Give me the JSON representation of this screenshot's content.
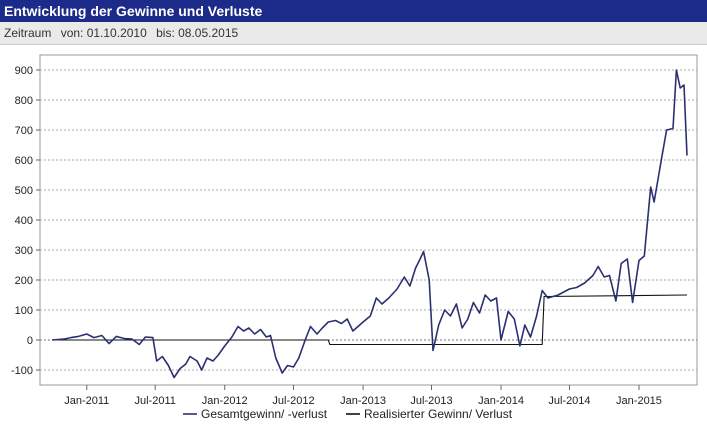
{
  "header": {
    "title": "Entwicklung der Gewinne und Verluste",
    "period_label": "Zeitraum",
    "from_label": "von: 01.10.2010",
    "to_label": "bis: 08.05.2015"
  },
  "chart_data": {
    "type": "line",
    "title": "",
    "xlabel": "",
    "ylabel": "",
    "ylim": [
      -150,
      950
    ],
    "y_ticks": [
      -100,
      0,
      100,
      200,
      300,
      400,
      500,
      600,
      700,
      800,
      900
    ],
    "x_range": [
      "2010-10-01",
      "2015-05-08"
    ],
    "x_ticks": [
      {
        "date": "2011-01-01",
        "label": "Jan-2011"
      },
      {
        "date": "2011-07-01",
        "label": "Jul-2011"
      },
      {
        "date": "2012-01-01",
        "label": "Jan-2012"
      },
      {
        "date": "2012-07-01",
        "label": "Jul-2012"
      },
      {
        "date": "2013-01-01",
        "label": "Jan-2013"
      },
      {
        "date": "2013-07-01",
        "label": "Jul-2013"
      },
      {
        "date": "2014-01-01",
        "label": "Jan-2014"
      },
      {
        "date": "2014-07-01",
        "label": "Jul-2014"
      },
      {
        "date": "2015-01-01",
        "label": "Jan-2015"
      }
    ],
    "grid": "horizontal dotted",
    "legend_position": "bottom",
    "series": [
      {
        "name": "Gesamtgewinn/ -verlust",
        "color": "#2b3170",
        "points": [
          [
            "2010-10-01",
            0
          ],
          [
            "2010-11-01",
            3
          ],
          [
            "2010-11-20",
            8
          ],
          [
            "2010-12-10",
            12
          ],
          [
            "2011-01-01",
            20
          ],
          [
            "2011-01-20",
            8
          ],
          [
            "2011-02-10",
            15
          ],
          [
            "2011-03-01",
            -12
          ],
          [
            "2011-03-20",
            12
          ],
          [
            "2011-04-10",
            5
          ],
          [
            "2011-05-01",
            3
          ],
          [
            "2011-05-20",
            -15
          ],
          [
            "2011-06-05",
            10
          ],
          [
            "2011-06-25",
            8
          ],
          [
            "2011-07-05",
            -70
          ],
          [
            "2011-07-20",
            -55
          ],
          [
            "2011-08-05",
            -85
          ],
          [
            "2011-08-20",
            -125
          ],
          [
            "2011-09-05",
            -95
          ],
          [
            "2011-09-20",
            -80
          ],
          [
            "2011-10-01",
            -55
          ],
          [
            "2011-10-20",
            -70
          ],
          [
            "2011-11-01",
            -100
          ],
          [
            "2011-11-15",
            -60
          ],
          [
            "2011-12-01",
            -70
          ],
          [
            "2011-12-15",
            -50
          ],
          [
            "2012-01-01",
            -20
          ],
          [
            "2012-01-20",
            10
          ],
          [
            "2012-02-05",
            45
          ],
          [
            "2012-02-20",
            30
          ],
          [
            "2012-03-05",
            40
          ],
          [
            "2012-03-20",
            20
          ],
          [
            "2012-04-05",
            35
          ],
          [
            "2012-04-20",
            10
          ],
          [
            "2012-05-01",
            15
          ],
          [
            "2012-05-15",
            -60
          ],
          [
            "2012-06-01",
            -110
          ],
          [
            "2012-06-15",
            -85
          ],
          [
            "2012-07-01",
            -90
          ],
          [
            "2012-07-15",
            -60
          ],
          [
            "2012-08-01",
            0
          ],
          [
            "2012-08-15",
            45
          ],
          [
            "2012-09-01",
            20
          ],
          [
            "2012-09-15",
            40
          ],
          [
            "2012-10-01",
            60
          ],
          [
            "2012-10-20",
            65
          ],
          [
            "2012-11-05",
            55
          ],
          [
            "2012-11-20",
            70
          ],
          [
            "2012-12-05",
            30
          ],
          [
            "2013-01-01",
            60
          ],
          [
            "2013-01-20",
            80
          ],
          [
            "2013-02-05",
            140
          ],
          [
            "2013-02-20",
            120
          ],
          [
            "2013-03-10",
            140
          ],
          [
            "2013-04-01",
            170
          ],
          [
            "2013-04-20",
            210
          ],
          [
            "2013-05-05",
            180
          ],
          [
            "2013-05-20",
            240
          ],
          [
            "2013-06-01",
            270
          ],
          [
            "2013-06-10",
            295
          ],
          [
            "2013-06-25",
            200
          ],
          [
            "2013-07-05",
            -35
          ],
          [
            "2013-07-20",
            50
          ],
          [
            "2013-08-05",
            100
          ],
          [
            "2013-08-20",
            80
          ],
          [
            "2013-09-05",
            120
          ],
          [
            "2013-09-20",
            40
          ],
          [
            "2013-10-05",
            70
          ],
          [
            "2013-10-20",
            125
          ],
          [
            "2013-11-05",
            90
          ],
          [
            "2013-11-20",
            150
          ],
          [
            "2013-12-05",
            130
          ],
          [
            "2013-12-20",
            140
          ],
          [
            "2014-01-01",
            0
          ],
          [
            "2014-01-20",
            95
          ],
          [
            "2014-02-05",
            70
          ],
          [
            "2014-02-20",
            -20
          ],
          [
            "2014-03-05",
            50
          ],
          [
            "2014-03-20",
            10
          ],
          [
            "2014-04-05",
            80
          ],
          [
            "2014-04-20",
            165
          ],
          [
            "2014-05-05",
            140
          ],
          [
            "2014-06-01",
            150
          ],
          [
            "2014-07-01",
            170
          ],
          [
            "2014-07-20",
            175
          ],
          [
            "2014-08-10",
            190
          ],
          [
            "2014-09-01",
            215
          ],
          [
            "2014-09-15",
            245
          ],
          [
            "2014-10-01",
            210
          ],
          [
            "2014-10-15",
            215
          ],
          [
            "2014-11-01",
            130
          ],
          [
            "2014-11-15",
            255
          ],
          [
            "2014-12-01",
            270
          ],
          [
            "2014-12-15",
            125
          ],
          [
            "2015-01-01",
            265
          ],
          [
            "2015-01-15",
            280
          ],
          [
            "2015-02-01",
            510
          ],
          [
            "2015-02-10",
            460
          ],
          [
            "2015-03-01",
            600
          ],
          [
            "2015-03-15",
            700
          ],
          [
            "2015-04-01",
            705
          ],
          [
            "2015-04-10",
            900
          ],
          [
            "2015-04-20",
            840
          ],
          [
            "2015-04-30",
            850
          ],
          [
            "2015-05-08",
            615
          ]
        ]
      },
      {
        "name": "Realisierter Gewinn/ Verlust",
        "color": "#111111",
        "points": [
          [
            "2010-10-01",
            0
          ],
          [
            "2012-10-01",
            0
          ],
          [
            "2012-10-05",
            -15
          ],
          [
            "2014-04-20",
            -15
          ],
          [
            "2014-04-25",
            145
          ],
          [
            "2015-05-08",
            150
          ]
        ]
      }
    ]
  }
}
